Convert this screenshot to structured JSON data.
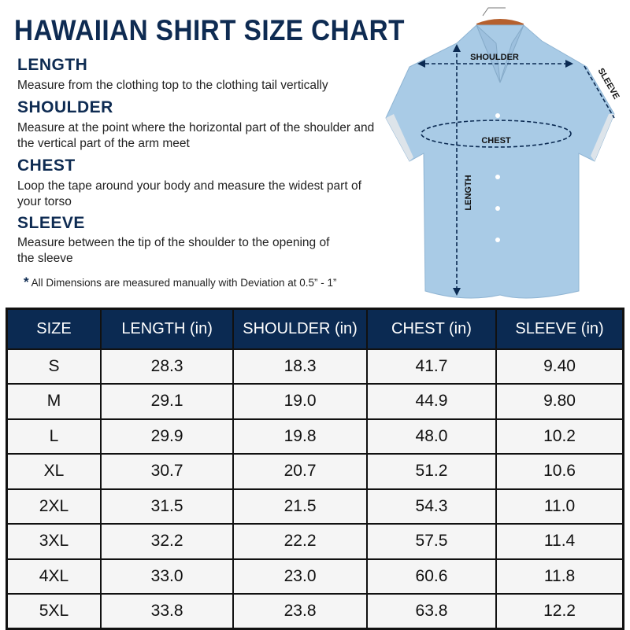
{
  "title": "HAWAIIAN SHIRT SIZE CHART",
  "sections": [
    {
      "heading": "LENGTH",
      "text": "Measure from the clothing top to the clothing tail vertically"
    },
    {
      "heading": "SHOULDER",
      "text": "Measure at the point where the horizontal part of the shoulder and the vertical part of the arm meet"
    },
    {
      "heading": "CHEST",
      "text": "Loop the tape around your body and measure the widest part of your torso"
    },
    {
      "heading": "SLEEVE",
      "text": "Measure between the tip of the shoulder to the opening of the sleeve"
    }
  ],
  "note": {
    "marker": "*",
    "text": "All Dimensions are measured manually with Deviation at 0.5” - 1”"
  },
  "diagram": {
    "shoulder": "SHOULDER",
    "chest": "CHEST",
    "length": "LENGTH",
    "sleeve": "SLEEVE",
    "shirt_color": "#a9cbe6"
  },
  "table": {
    "headers": [
      "SIZE",
      "LENGTH (in)",
      "SHOULDER (in)",
      "CHEST (in)",
      "SLEEVE (in)"
    ],
    "rows": [
      [
        "S",
        "28.3",
        "18.3",
        "41.7",
        "9.40"
      ],
      [
        "M",
        "29.1",
        "19.0",
        "44.9",
        "9.80"
      ],
      [
        "L",
        "29.9",
        "19.8",
        "48.0",
        "10.2"
      ],
      [
        "XL",
        "30.7",
        "20.7",
        "51.2",
        "10.6"
      ],
      [
        "2XL",
        "31.5",
        "21.5",
        "54.3",
        "11.0"
      ],
      [
        "3XL",
        "32.2",
        "22.2",
        "57.5",
        "11.4"
      ],
      [
        "4XL",
        "33.0",
        "23.0",
        "60.6",
        "11.8"
      ],
      [
        "5XL",
        "33.8",
        "23.8",
        "63.8",
        "12.2"
      ]
    ]
  },
  "colors": {
    "navy": "#0b2a52"
  }
}
